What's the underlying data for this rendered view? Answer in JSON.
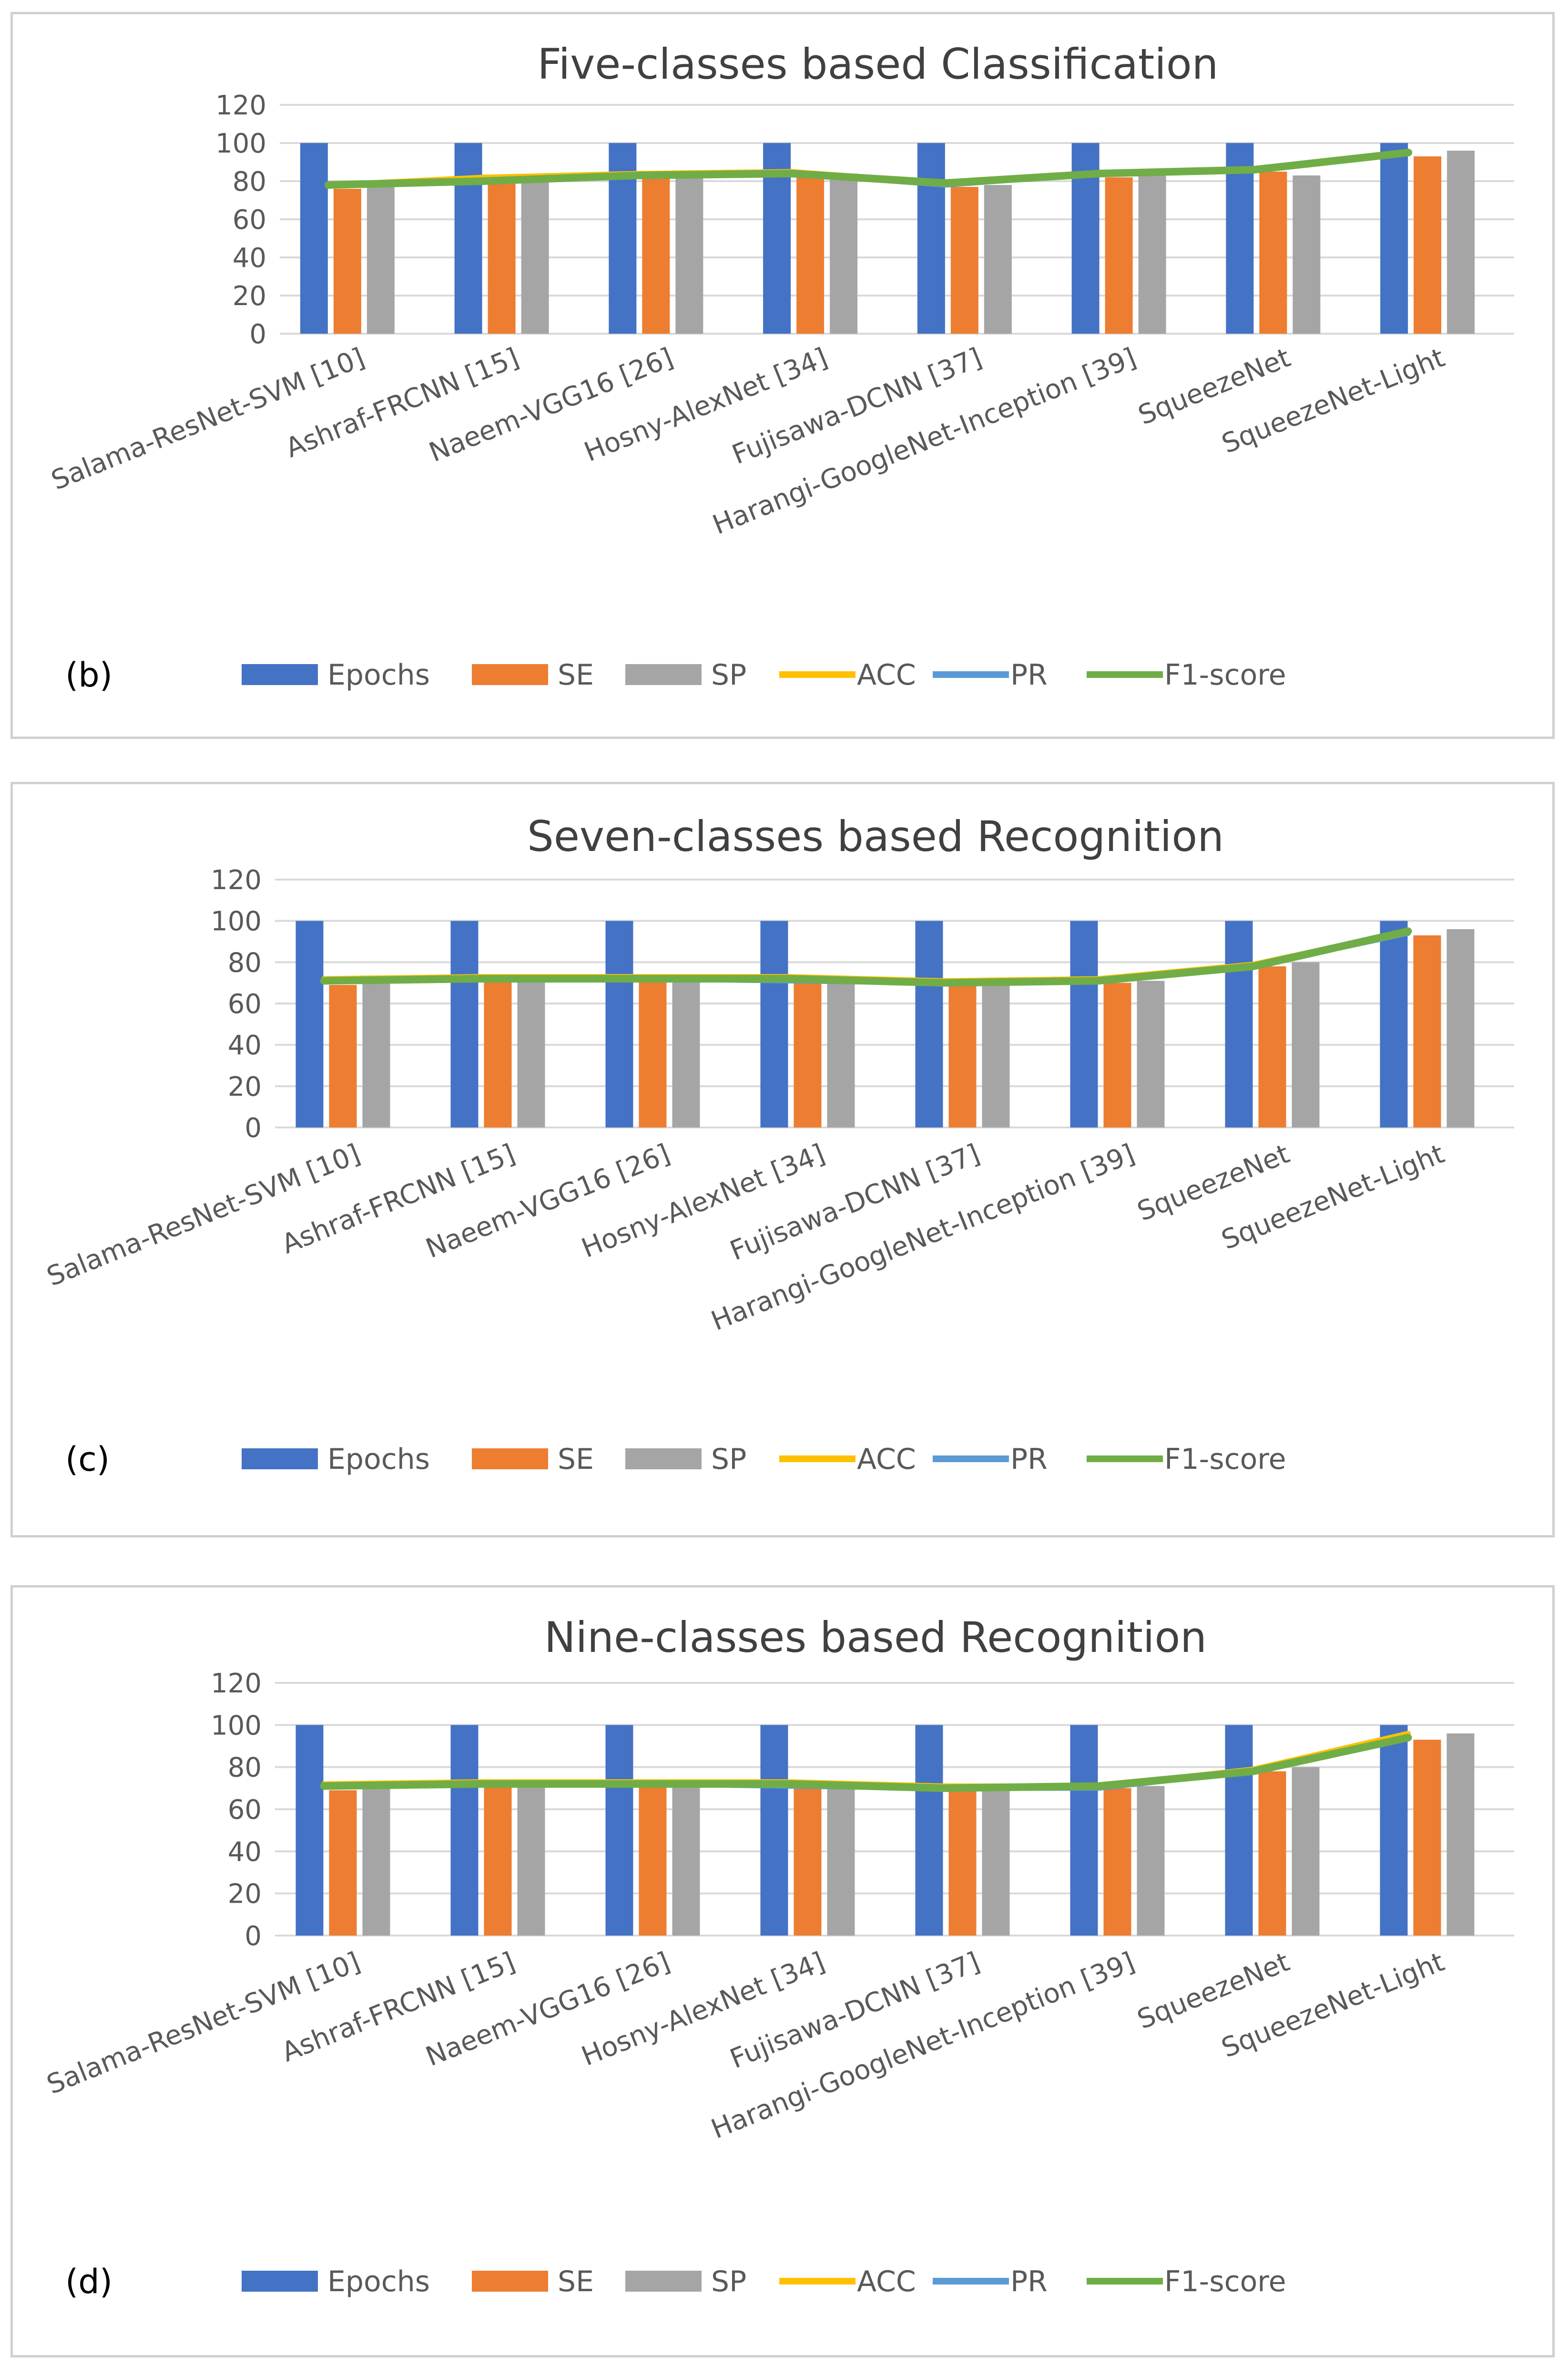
{
  "chart_data": [
    {
      "type": "bar",
      "panel_label": "(b)",
      "title": "Five-classes based Classification",
      "categories": [
        "Salama-ResNet-SVM [10]",
        "Ashraf-FRCNN [15]",
        "Naeem-VGG16 [26]",
        "Hosny-AlexNet [34]",
        "Fujisawa-DCNN [37]",
        "Harangi-GoogleNet-Inception [39]",
        "SqueezeNet",
        "SqueezeNet-Light"
      ],
      "ylim": [
        0,
        120
      ],
      "yticks": [
        "0",
        "20",
        "40",
        "60",
        "80",
        "100",
        "120"
      ],
      "legend_position": "bottom",
      "series": [
        {
          "name": "Epochs",
          "kind": "bar",
          "values": [
            100,
            100,
            100,
            100,
            100,
            100,
            100,
            100
          ]
        },
        {
          "name": "SE",
          "kind": "bar",
          "values": [
            76,
            80,
            82,
            83,
            77,
            82,
            85,
            93
          ]
        },
        {
          "name": "SP",
          "kind": "bar",
          "values": [
            78,
            81,
            83,
            84,
            78,
            83,
            83,
            96
          ]
        },
        {
          "name": "ACC",
          "kind": "line",
          "values": [
            78,
            82,
            84,
            85,
            79,
            84,
            86,
            95
          ]
        },
        {
          "name": "PR",
          "kind": "line",
          "values": [
            78,
            80,
            83,
            84,
            78,
            84,
            86,
            95
          ]
        },
        {
          "name": "F1-score",
          "kind": "line",
          "values": [
            78,
            80,
            83,
            84,
            79,
            84,
            86,
            95
          ]
        }
      ]
    },
    {
      "type": "bar",
      "panel_label": "(c)",
      "title": "Seven-classes based Recognition",
      "categories": [
        "Salama-ResNet-SVM [10]",
        "Ashraf-FRCNN [15]",
        "Naeem-VGG16 [26]",
        "Hosny-AlexNet [34]",
        "Fujisawa-DCNN [37]",
        "Harangi-GoogleNet-Inception [39]",
        "SqueezeNet",
        "SqueezeNet-Light"
      ],
      "ylim": [
        0,
        120
      ],
      "yticks": [
        "0",
        "20",
        "40",
        "60",
        "80",
        "100",
        "120"
      ],
      "legend_position": "bottom",
      "series": [
        {
          "name": "Epochs",
          "kind": "bar",
          "values": [
            100,
            100,
            100,
            100,
            100,
            100,
            100,
            100
          ]
        },
        {
          "name": "SE",
          "kind": "bar",
          "values": [
            69,
            71,
            71,
            70,
            69,
            70,
            78,
            93
          ]
        },
        {
          "name": "SP",
          "kind": "bar",
          "values": [
            70,
            72,
            72,
            71,
            70,
            71,
            80,
            96
          ]
        },
        {
          "name": "ACC",
          "kind": "line",
          "values": [
            72,
            73,
            73,
            73,
            71,
            72,
            79,
            95
          ]
        },
        {
          "name": "PR",
          "kind": "line",
          "values": [
            71,
            72,
            72,
            71,
            70,
            71,
            78,
            94
          ]
        },
        {
          "name": "F1-score",
          "kind": "line",
          "values": [
            71,
            72,
            72,
            72,
            70,
            71,
            78,
            95
          ]
        }
      ]
    },
    {
      "type": "bar",
      "panel_label": "(d)",
      "title": "Nine-classes based Recognition",
      "categories": [
        "Salama-ResNet-SVM [10]",
        "Ashraf-FRCNN [15]",
        "Naeem-VGG16 [26]",
        "Hosny-AlexNet [34]",
        "Fujisawa-DCNN [37]",
        "Harangi-GoogleNet-Inception [39]",
        "SqueezeNet",
        "SqueezeNet-Light"
      ],
      "ylim": [
        0,
        120
      ],
      "yticks": [
        "0",
        "20",
        "40",
        "60",
        "80",
        "100",
        "120"
      ],
      "legend_position": "bottom",
      "series": [
        {
          "name": "Epochs",
          "kind": "bar",
          "values": [
            100,
            100,
            100,
            100,
            100,
            100,
            100,
            100
          ]
        },
        {
          "name": "SE",
          "kind": "bar",
          "values": [
            69,
            71,
            71,
            70,
            69,
            70,
            78,
            93
          ]
        },
        {
          "name": "SP",
          "kind": "bar",
          "values": [
            70,
            72,
            72,
            71,
            70,
            71,
            80,
            96
          ]
        },
        {
          "name": "ACC",
          "kind": "line",
          "values": [
            72,
            73,
            73,
            73,
            71,
            71,
            79,
            96
          ]
        },
        {
          "name": "PR",
          "kind": "line",
          "values": [
            71,
            72,
            72,
            71,
            70,
            70,
            78,
            94
          ]
        },
        {
          "name": "F1-score",
          "kind": "line",
          "values": [
            71,
            72,
            72,
            72,
            70,
            71,
            78,
            94
          ]
        }
      ]
    }
  ],
  "colors": {
    "Epochs": "#4472c4",
    "SE": "#ed7d31",
    "SP": "#a5a5a5",
    "ACC": "#ffc000",
    "PR": "#5b9bd5",
    "F1-score": "#70ad47",
    "grid": "#d9d9d9",
    "text": "#595959"
  }
}
